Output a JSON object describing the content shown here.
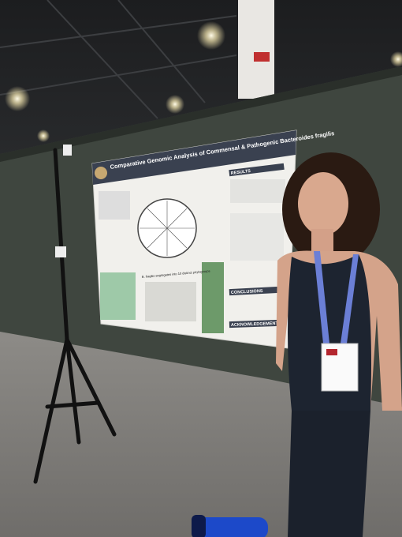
{
  "poster": {
    "title": "Comparative Genomic Analysis of Commensal & Pathogenic Bacteroides fragilis",
    "sections": [
      "RESULTS",
      "CONCLUSIONS",
      "ACKNOWLEDGEMENTS"
    ],
    "phylogroup_caption": "B. fragilis segregates into 10 distinct phylogroups"
  }
}
